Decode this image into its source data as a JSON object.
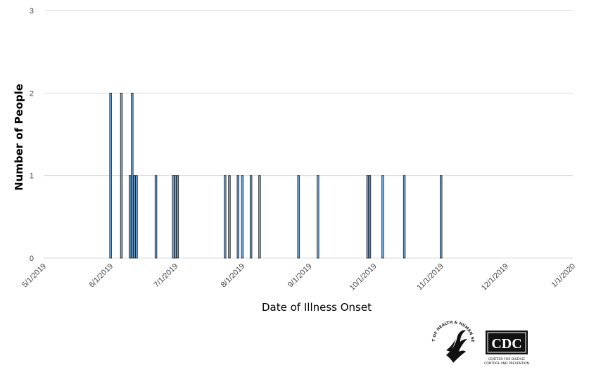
{
  "chart_data": {
    "type": "bar",
    "title": "",
    "xlabel": "Date of Illness Onset",
    "ylabel": "Number of People",
    "ylim": [
      0,
      3
    ],
    "yticks": [
      0,
      1,
      2,
      3
    ],
    "xlim": [
      "2019-05-01",
      "2020-01-01"
    ],
    "xtick_labels": [
      "5/1/2019",
      "6/1/2019",
      "7/1/2019",
      "8/1/2019",
      "9/1/2019",
      "10/1/2019",
      "11/1/2019",
      "12/1/2019",
      "1/1/2020"
    ],
    "xtick_dates": [
      "2019-05-01",
      "2019-06-01",
      "2019-07-01",
      "2019-08-01",
      "2019-09-01",
      "2019-10-01",
      "2019-11-01",
      "2019-12-01",
      "2020-01-01"
    ],
    "grid": "horizontal",
    "points": [
      {
        "date": "2019-06-01",
        "value": 2
      },
      {
        "date": "2019-06-06",
        "value": 2
      },
      {
        "date": "2019-06-10",
        "value": 1
      },
      {
        "date": "2019-06-11",
        "value": 2
      },
      {
        "date": "2019-06-12",
        "value": 1
      },
      {
        "date": "2019-06-13",
        "value": 1
      },
      {
        "date": "2019-06-22",
        "value": 1
      },
      {
        "date": "2019-06-30",
        "value": 1
      },
      {
        "date": "2019-07-01",
        "value": 1
      },
      {
        "date": "2019-07-02",
        "value": 1
      },
      {
        "date": "2019-07-24",
        "value": 1
      },
      {
        "date": "2019-07-26",
        "value": 1
      },
      {
        "date": "2019-07-30",
        "value": 1
      },
      {
        "date": "2019-08-01",
        "value": 1
      },
      {
        "date": "2019-08-05",
        "value": 1
      },
      {
        "date": "2019-08-09",
        "value": 1
      },
      {
        "date": "2019-08-27",
        "value": 1
      },
      {
        "date": "2019-09-05",
        "value": 1
      },
      {
        "date": "2019-09-28",
        "value": 1
      },
      {
        "date": "2019-09-29",
        "value": 1
      },
      {
        "date": "2019-10-05",
        "value": 1
      },
      {
        "date": "2019-10-15",
        "value": 1
      },
      {
        "date": "2019-11-01",
        "value": 1
      }
    ]
  },
  "logos": {
    "hhs_seal_icon": "hhs-seal-icon",
    "hhs_seal_text": "DEPARTMENT OF HEALTH & HUMAN SERVICES USA",
    "cdc_logo_icon": "cdc-logo-icon",
    "cdc_letters": "CDC",
    "cdc_tagline_1": "CENTERS FOR DISEASE",
    "cdc_tagline_2": "CONTROL AND PREVENTION"
  }
}
